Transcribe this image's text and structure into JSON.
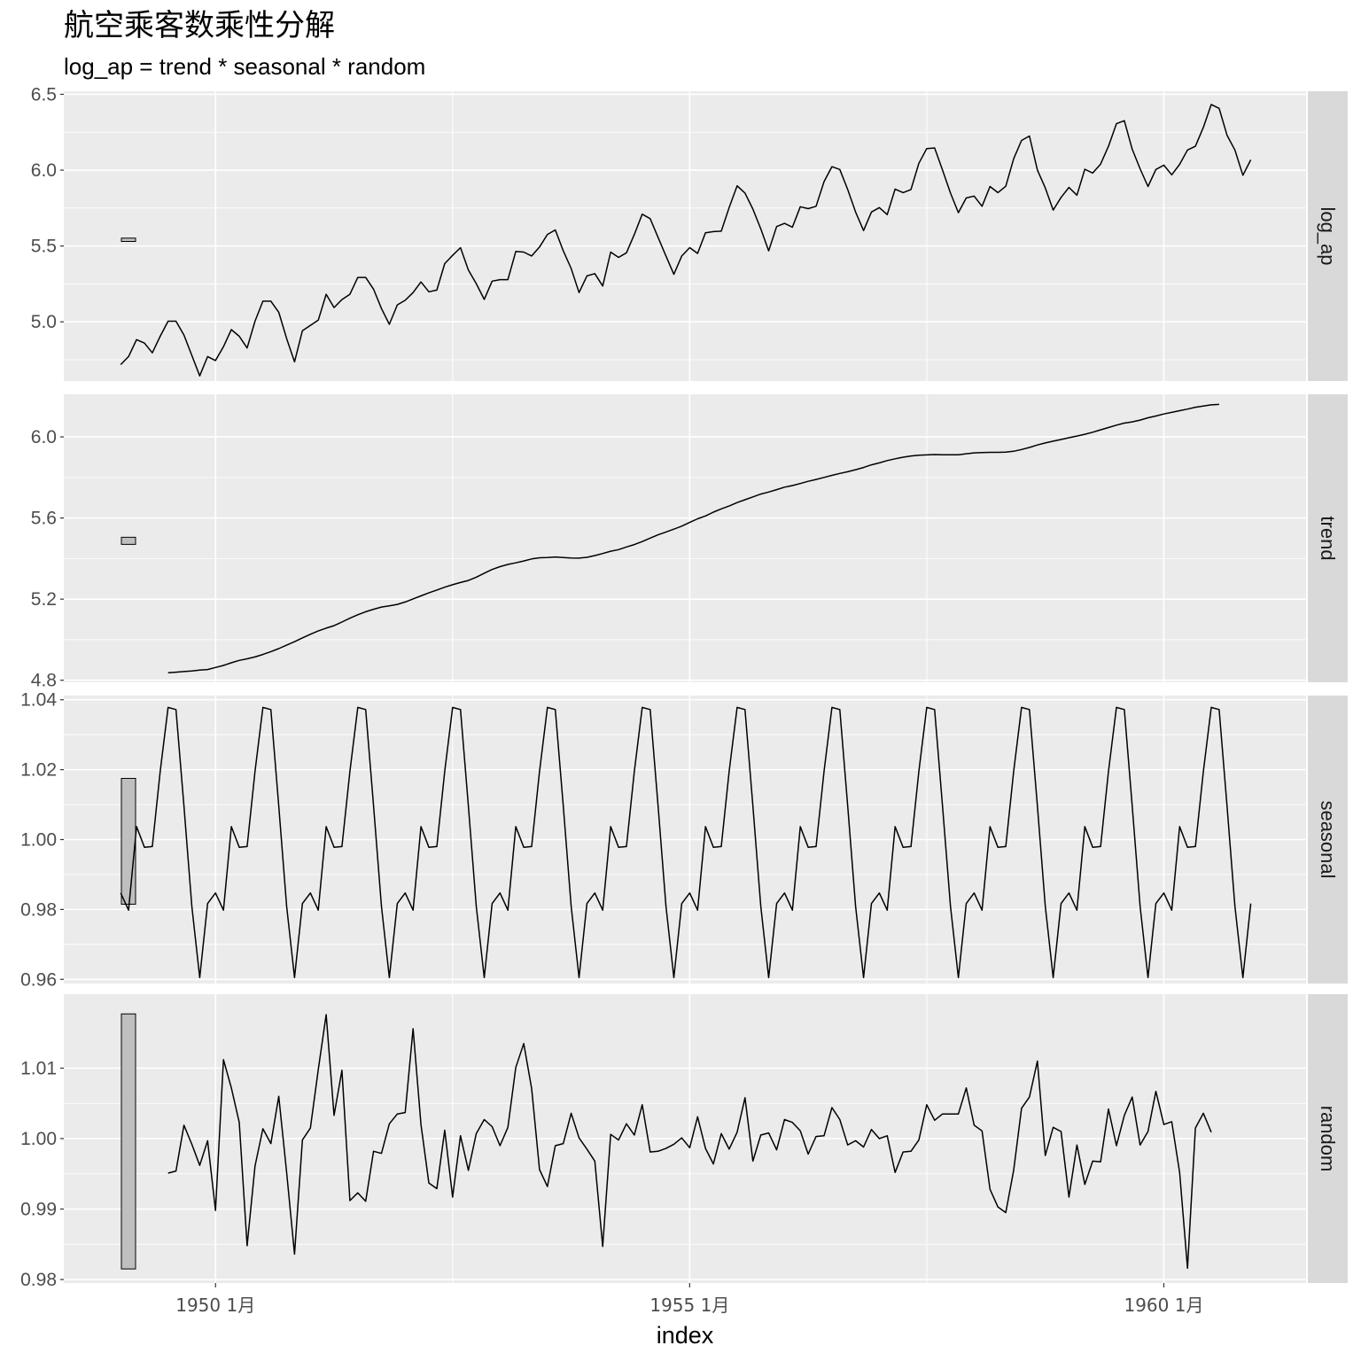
{
  "title": "航空乘客数乘性分解",
  "subtitle": "log_ap = trend * seasonal * random",
  "chart_data": {
    "type": "line",
    "title": "航空乘客数乘性分解",
    "subtitle": "log_ap = trend * seasonal * random",
    "xlabel": "index",
    "x_start": 1949.0,
    "x_step": 0.0833333,
    "x_range": [
      1948.4,
      1961.5
    ],
    "x_ticks": [
      {
        "value": 1950.0,
        "label": "1950 1月"
      },
      {
        "value": 1955.0,
        "label": "1955 1月"
      },
      {
        "value": 1960.0,
        "label": "1960 1月"
      }
    ],
    "x_minor": [
      1947.5,
      1952.5,
      1957.5
    ],
    "grid": true,
    "panels": [
      {
        "name": "log_ap",
        "ylim": [
          4.61,
          6.52
        ],
        "yticks": [
          5.0,
          5.5,
          6.0,
          6.5
        ],
        "ytick_labels": [
          "5.0",
          "5.5",
          "6.0",
          "6.5"
        ],
        "scale_bar": [
          5.53,
          5.552
        ],
        "offset": 0,
        "values": [
          4.718,
          4.771,
          4.883,
          4.86,
          4.796,
          4.905,
          5.004,
          5.004,
          4.913,
          4.779,
          4.644,
          4.771,
          4.745,
          4.836,
          4.949,
          4.905,
          4.828,
          5.004,
          5.136,
          5.136,
          5.063,
          4.89,
          4.736,
          4.942,
          4.977,
          5.011,
          5.182,
          5.094,
          5.147,
          5.182,
          5.293,
          5.293,
          5.215,
          5.088,
          4.984,
          5.112,
          5.142,
          5.193,
          5.263,
          5.198,
          5.209,
          5.384,
          5.438,
          5.489,
          5.342,
          5.252,
          5.148,
          5.268,
          5.278,
          5.278,
          5.464,
          5.46,
          5.434,
          5.493,
          5.576,
          5.606,
          5.468,
          5.352,
          5.193,
          5.303,
          5.318,
          5.236,
          5.46,
          5.425,
          5.455,
          5.576,
          5.71,
          5.68,
          5.557,
          5.434,
          5.313,
          5.434,
          5.489,
          5.451,
          5.587,
          5.595,
          5.598,
          5.753,
          5.897,
          5.849,
          5.743,
          5.613,
          5.468,
          5.628,
          5.649,
          5.624,
          5.759,
          5.746,
          5.762,
          5.924,
          6.023,
          6.004,
          5.872,
          5.724,
          5.602,
          5.724,
          5.753,
          5.707,
          5.875,
          5.852,
          5.872,
          6.045,
          6.142,
          6.146,
          6.001,
          5.849,
          5.72,
          5.817,
          5.829,
          5.762,
          5.892,
          5.852,
          5.894,
          6.075,
          6.196,
          6.225,
          6.001,
          5.883,
          5.737,
          5.82,
          5.886,
          5.835,
          6.006,
          5.981,
          6.04,
          6.157,
          6.306,
          6.326,
          6.138,
          6.009,
          5.892,
          6.004,
          6.033,
          5.969,
          6.038,
          6.133,
          6.157,
          6.282,
          6.433,
          6.407,
          6.23,
          6.133,
          5.966,
          6.068
        ]
      },
      {
        "name": "trend",
        "ylim": [
          4.79,
          6.21
        ],
        "yticks": [
          4.8,
          5.2,
          5.6,
          6.0
        ],
        "ytick_labels": [
          "4.8",
          "5.2",
          "5.6",
          "6.0"
        ],
        "scale_bar": [
          5.47,
          5.505
        ],
        "offset": 6,
        "values": [
          4.837,
          4.84,
          4.843,
          4.846,
          4.85,
          4.853,
          4.863,
          4.873,
          4.886,
          4.898,
          4.906,
          4.915,
          4.927,
          4.941,
          4.956,
          4.973,
          4.99,
          5.009,
          5.027,
          5.043,
          5.057,
          5.069,
          5.087,
          5.106,
          5.123,
          5.138,
          5.15,
          5.161,
          5.167,
          5.174,
          5.186,
          5.201,
          5.216,
          5.231,
          5.245,
          5.259,
          5.271,
          5.282,
          5.292,
          5.308,
          5.328,
          5.346,
          5.36,
          5.371,
          5.379,
          5.388,
          5.398,
          5.404,
          5.405,
          5.408,
          5.405,
          5.403,
          5.402,
          5.406,
          5.415,
          5.425,
          5.436,
          5.444,
          5.457,
          5.469,
          5.484,
          5.501,
          5.517,
          5.531,
          5.545,
          5.56,
          5.578,
          5.596,
          5.61,
          5.629,
          5.645,
          5.659,
          5.676,
          5.69,
          5.704,
          5.718,
          5.728,
          5.74,
          5.752,
          5.76,
          5.77,
          5.781,
          5.79,
          5.8,
          5.81,
          5.82,
          5.828,
          5.838,
          5.849,
          5.862,
          5.872,
          5.883,
          5.892,
          5.9,
          5.906,
          5.91,
          5.911,
          5.913,
          5.912,
          5.912,
          5.912,
          5.917,
          5.921,
          5.923,
          5.924,
          5.924,
          5.925,
          5.929,
          5.938,
          5.948,
          5.96,
          5.97,
          5.979,
          5.987,
          5.996,
          6.004,
          6.013,
          6.023,
          6.035,
          6.046,
          6.058,
          6.068,
          6.074,
          6.083,
          6.094,
          6.103,
          6.113,
          6.121,
          6.129,
          6.137,
          6.146,
          6.152,
          6.158,
          6.16
        ]
      },
      {
        "name": "seasonal",
        "ylim": [
          0.9588,
          1.0412
        ],
        "yticks": [
          0.96,
          0.98,
          1.0,
          1.02,
          1.04
        ],
        "ytick_labels": [
          "0.96",
          "0.98",
          "1.00",
          "1.02",
          "1.04"
        ],
        "scale_bar": [
          0.9815,
          1.0175
        ],
        "offset": 0,
        "pattern": [
          0.9847,
          0.9798,
          1.0037,
          0.9978,
          0.998,
          1.0195,
          1.0378,
          1.0372,
          1.0096,
          0.9809,
          0.9605,
          0.9817
        ]
      },
      {
        "name": "random",
        "ylim": [
          0.9795,
          1.0205
        ],
        "yticks": [
          0.98,
          0.99,
          1.0,
          1.01
        ],
        "ytick_labels": [
          "0.98",
          "0.99",
          "1.00",
          "1.01"
        ],
        "scale_bar": [
          0.9815,
          1.0177
        ],
        "offset": 6,
        "values": [
          0.9951,
          0.9954,
          1.0019,
          0.9992,
          0.9962,
          0.9997,
          0.9898,
          1.0112,
          1.0072,
          1.0023,
          0.9848,
          0.9961,
          1.0014,
          0.9993,
          1.006,
          0.9952,
          0.9836,
          0.9998,
          1.0015,
          1.0098,
          1.0176,
          1.0033,
          1.0097,
          0.9912,
          0.9923,
          0.9911,
          0.9982,
          0.9979,
          1.0021,
          1.0035,
          1.0037,
          1.0156,
          1.002,
          0.9937,
          0.9929,
          1.0012,
          0.9917,
          1.0004,
          0.9955,
          1.0007,
          1.0027,
          1.0017,
          0.999,
          1.0016,
          1.0101,
          1.0135,
          1.0071,
          0.9956,
          0.9932,
          0.999,
          0.9993,
          1.0036,
          1.0001,
          0.9985,
          0.9968,
          0.9847,
          1.0006,
          0.9998,
          1.0021,
          1.0005,
          1.0048,
          0.9981,
          0.9982,
          0.9986,
          0.9992,
          1.0001,
          0.9987,
          1.0031,
          0.9986,
          0.9964,
          1.0007,
          0.9985,
          1.0009,
          1.0058,
          0.9968,
          1.0005,
          1.0008,
          0.9984,
          1.0027,
          1.0023,
          1.0011,
          0.9978,
          1.0003,
          1.0004,
          1.0044,
          1.0027,
          0.9991,
          0.9997,
          0.9988,
          1.0013,
          1.0,
          1.0004,
          0.9952,
          0.9981,
          0.9982,
          0.9998,
          1.0048,
          1.0026,
          1.0035,
          1.0035,
          1.0035,
          1.0072,
          1.0019,
          1.0011,
          0.9928,
          0.9903,
          0.9895,
          0.9955,
          1.0043,
          1.0059,
          1.011,
          0.9976,
          1.0016,
          1.001,
          0.9917,
          0.9991,
          0.9935,
          0.9968,
          0.9967,
          1.0042,
          0.999,
          1.0033,
          1.0059,
          0.9991,
          1.001,
          1.0067,
          1.002,
          1.0024,
          0.9952,
          0.9816,
          1.0015,
          1.0036,
          1.0009
        ]
      }
    ]
  }
}
